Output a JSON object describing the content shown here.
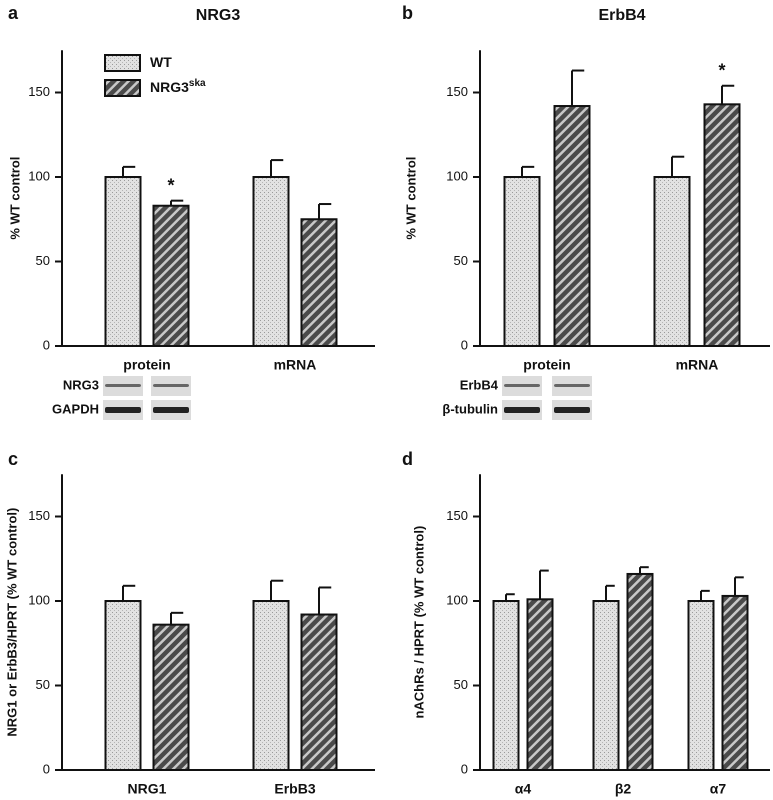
{
  "chart_data": [
    {
      "type": "bar",
      "panel_label": "a",
      "title": "NRG3",
      "ylabel": "% WT control",
      "categories": [
        "protein",
        "mRNA"
      ],
      "series": [
        {
          "name": "WT",
          "color": "#e2e2e2",
          "values": [
            100,
            100
          ],
          "errors": [
            6,
            10
          ]
        },
        {
          "name": "NRG3",
          "name_superscript": "ska",
          "color": "#4a4a4a",
          "values": [
            83,
            75
          ],
          "errors": [
            3,
            9
          ],
          "significance": [
            "*",
            null
          ]
        }
      ],
      "ylim": [
        0,
        175
      ],
      "yticks": [
        0,
        50,
        100,
        150
      ],
      "blot_labels": [
        "NRG3",
        "GAPDH"
      ]
    },
    {
      "type": "bar",
      "panel_label": "b",
      "title": "ErbB4",
      "ylabel": "% WT control",
      "categories": [
        "protein",
        "mRNA"
      ],
      "series": [
        {
          "color": "#e2e2e2",
          "values": [
            100,
            100
          ],
          "errors": [
            6,
            12
          ]
        },
        {
          "color": "#4a4a4a",
          "values": [
            142,
            143
          ],
          "errors": [
            21,
            11
          ],
          "significance": [
            null,
            "*"
          ]
        }
      ],
      "ylim": [
        0,
        175
      ],
      "yticks": [
        0,
        50,
        100,
        150
      ],
      "blot_labels": [
        "ErbB4",
        "β-tubulin"
      ]
    },
    {
      "type": "bar",
      "panel_label": "c",
      "ylabel": "NRG1 or ErbB3/HPRT (% WT control)",
      "categories": [
        "NRG1",
        "ErbB3"
      ],
      "series": [
        {
          "color": "#e2e2e2",
          "values": [
            100,
            100
          ],
          "errors": [
            9,
            12
          ]
        },
        {
          "color": "#4a4a4a",
          "values": [
            86,
            92
          ],
          "errors": [
            7,
            16
          ]
        }
      ],
      "ylim": [
        0,
        175
      ],
      "yticks": [
        0,
        50,
        100,
        150
      ]
    },
    {
      "type": "bar",
      "panel_label": "d",
      "ylabel": "nAChRs / HPRT (% WT control)",
      "categories": [
        "α4",
        "β2",
        "α7"
      ],
      "series": [
        {
          "color": "#e2e2e2",
          "values": [
            100,
            100,
            100
          ],
          "errors": [
            4,
            9,
            6
          ]
        },
        {
          "color": "#4a4a4a",
          "values": [
            101,
            116,
            103
          ],
          "errors": [
            17,
            4,
            11
          ]
        }
      ],
      "ylim": [
        0,
        175
      ],
      "yticks": [
        0,
        50,
        100,
        150
      ]
    }
  ]
}
